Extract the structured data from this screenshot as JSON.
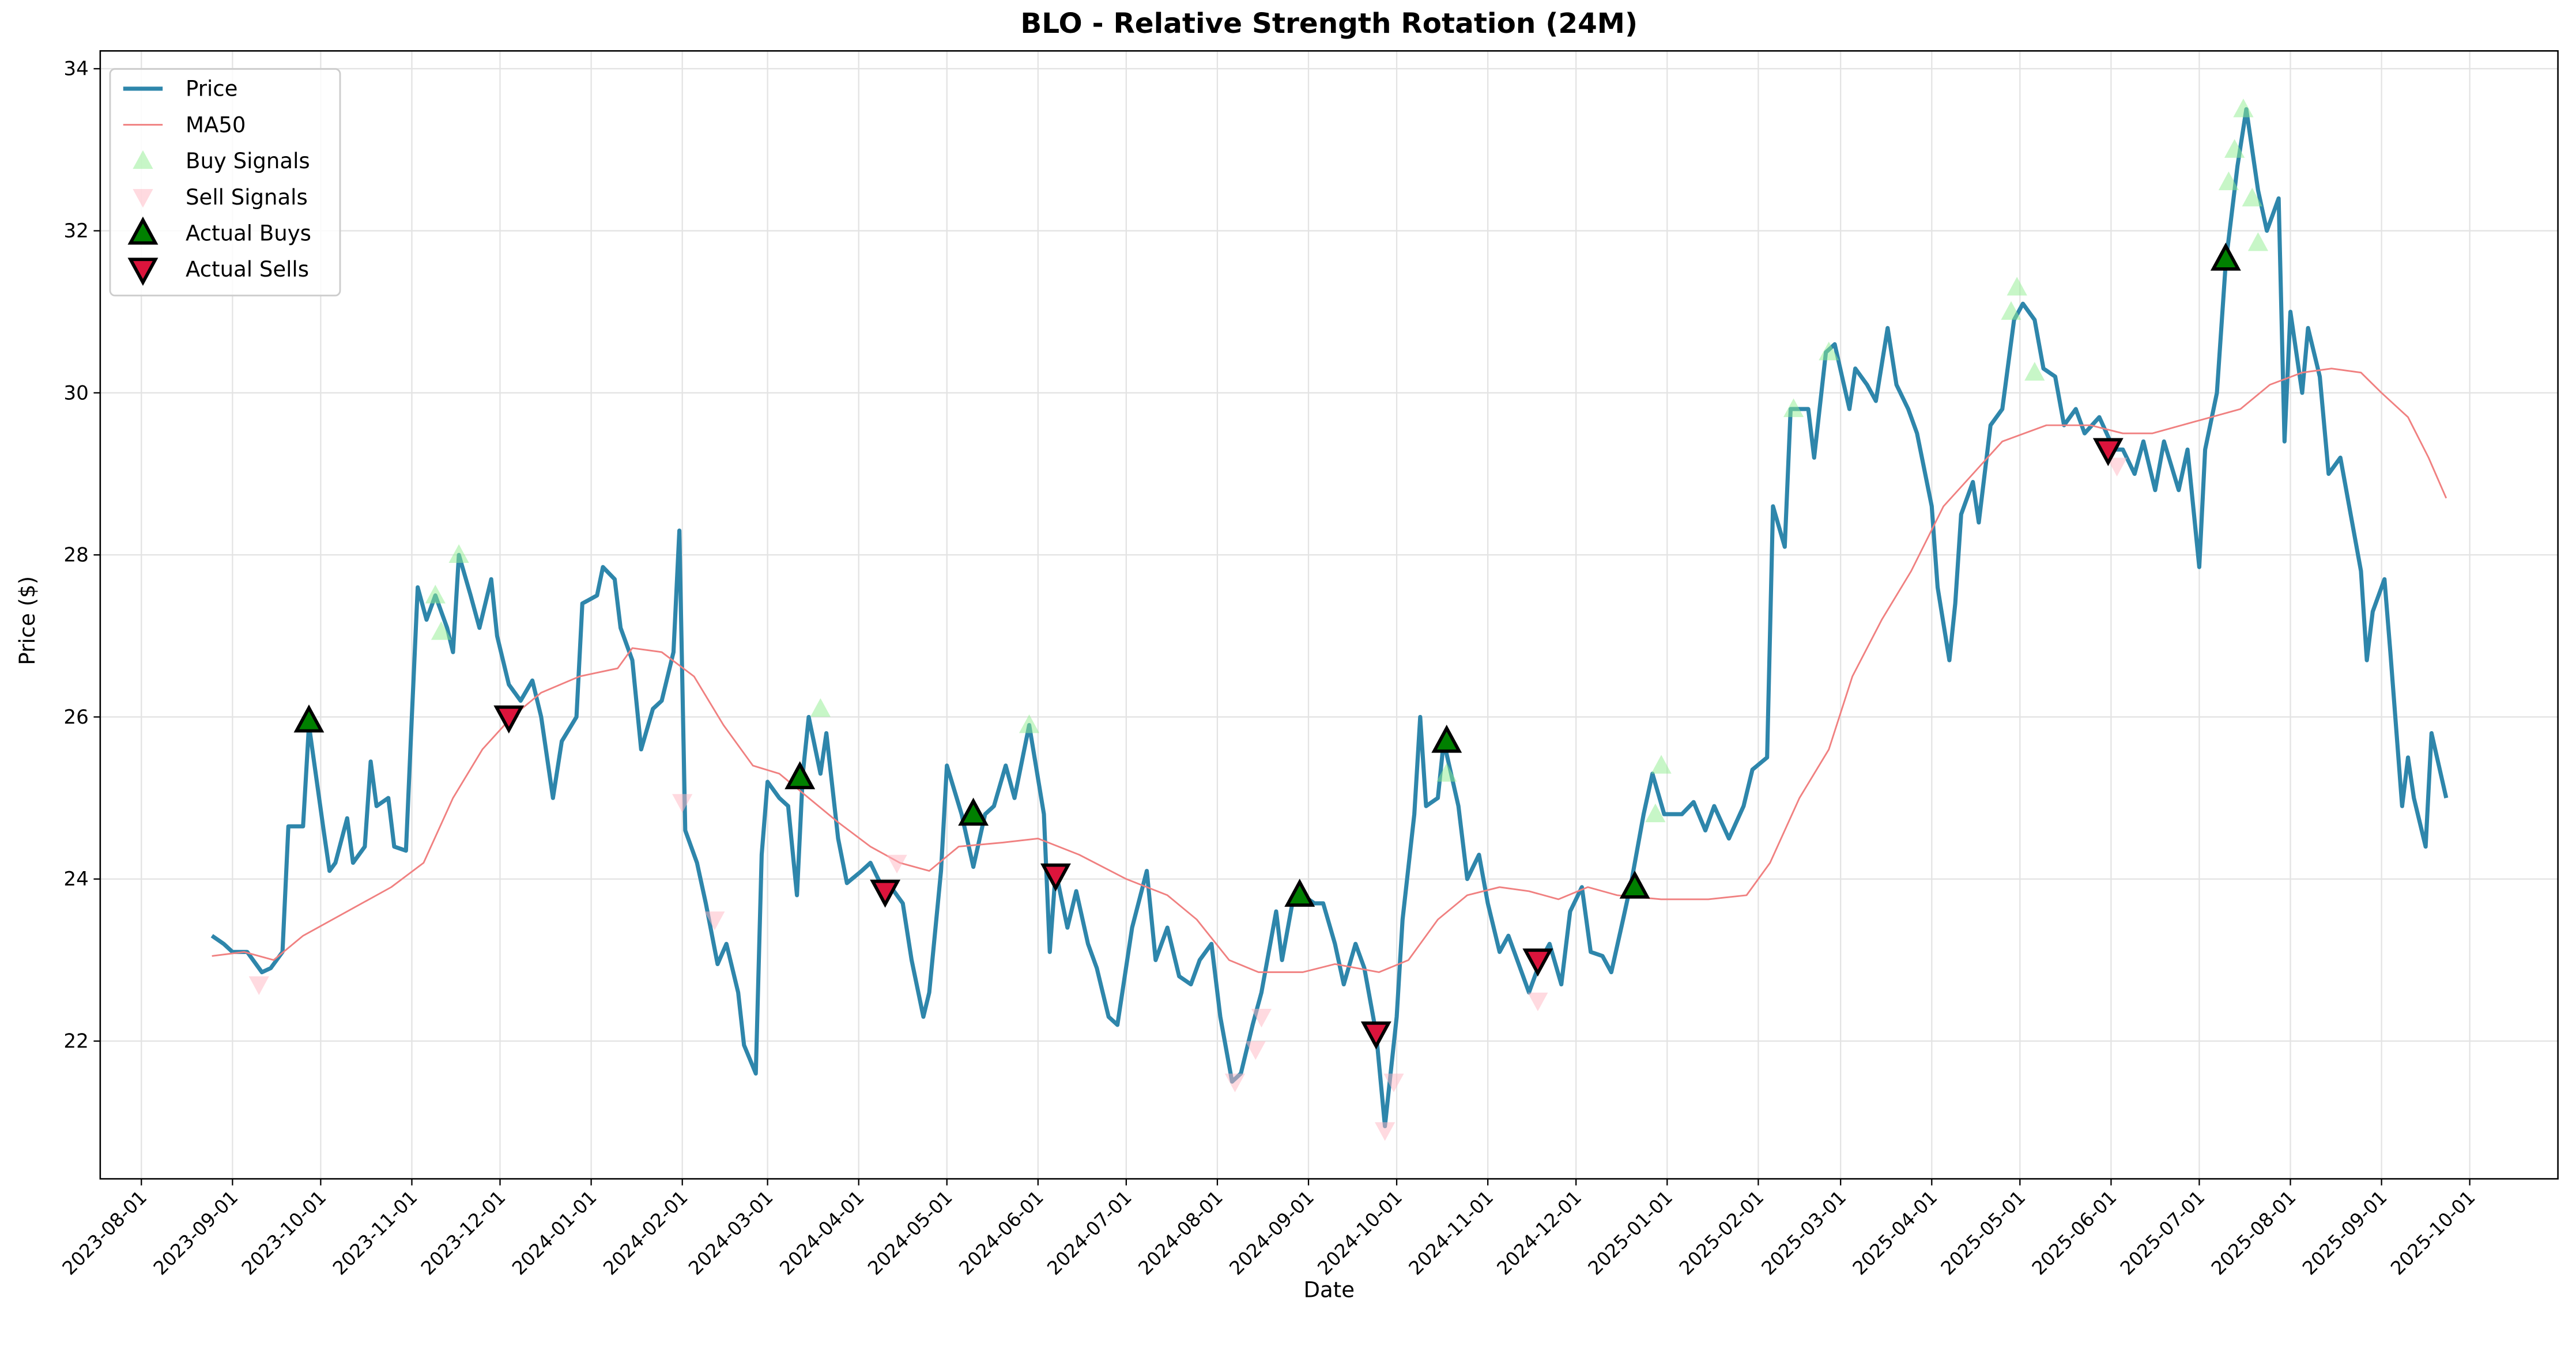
{
  "chart_data": {
    "type": "line",
    "title": "BLO - Relative Strength Rotation (24M)",
    "x_label": "Date",
    "y_label": "Price ($)",
    "xlim": [
      "2023-07-18",
      "2025-10-31"
    ],
    "ylim": [
      20.3,
      34.22
    ],
    "xticks": [
      "2023-08-01",
      "2023-09-01",
      "2023-10-01",
      "2023-11-01",
      "2023-12-01",
      "2024-01-01",
      "2024-02-01",
      "2024-03-01",
      "2024-04-01",
      "2024-05-01",
      "2024-06-01",
      "2024-07-01",
      "2024-08-01",
      "2024-09-01",
      "2024-10-01",
      "2024-11-01",
      "2024-12-01",
      "2025-01-01",
      "2025-02-01",
      "2025-03-01",
      "2025-04-01",
      "2025-05-01",
      "2025-06-01",
      "2025-07-01",
      "2025-08-01",
      "2025-09-01",
      "2025-10-01"
    ],
    "yticks": [
      22,
      24,
      26,
      28,
      30,
      32,
      34
    ],
    "grid": true,
    "legend": "upper left",
    "series": [
      {
        "name": "Price",
        "type": "line",
        "color": "#2e86ab",
        "width": 2.5,
        "x": [
          "2023-08-25",
          "2023-08-29",
          "2023-09-01",
          "2023-09-06",
          "2023-09-11",
          "2023-09-14",
          "2023-09-18",
          "2023-09-20",
          "2023-09-25",
          "2023-09-27",
          "2023-10-02",
          "2023-10-04",
          "2023-10-06",
          "2023-10-10",
          "2023-10-12",
          "2023-10-16",
          "2023-10-18",
          "2023-10-20",
          "2023-10-24",
          "2023-10-26",
          "2023-10-30",
          "2023-11-01",
          "2023-11-03",
          "2023-11-06",
          "2023-11-09",
          "2023-11-13",
          "2023-11-15",
          "2023-11-17",
          "2023-11-21",
          "2023-11-24",
          "2023-11-28",
          "2023-11-30",
          "2023-12-04",
          "2023-12-08",
          "2023-12-12",
          "2023-12-15",
          "2023-12-19",
          "2023-12-22",
          "2023-12-27",
          "2023-12-29",
          "2024-01-03",
          "2024-01-05",
          "2024-01-09",
          "2024-01-11",
          "2024-01-15",
          "2024-01-18",
          "2024-01-22",
          "2024-01-25",
          "2024-01-29",
          "2024-01-31",
          "2024-02-02",
          "2024-02-06",
          "2024-02-09",
          "2024-02-13",
          "2024-02-16",
          "2024-02-20",
          "2024-02-22",
          "2024-02-26",
          "2024-02-28",
          "2024-03-01",
          "2024-03-05",
          "2024-03-08",
          "2024-03-11",
          "2024-03-13",
          "2024-03-15",
          "2024-03-19",
          "2024-03-21",
          "2024-03-25",
          "2024-03-28",
          "2024-04-02",
          "2024-04-05",
          "2024-04-09",
          "2024-04-12",
          "2024-04-16",
          "2024-04-19",
          "2024-04-23",
          "2024-04-25",
          "2024-04-29",
          "2024-05-01",
          "2024-05-06",
          "2024-05-10",
          "2024-05-14",
          "2024-05-17",
          "2024-05-21",
          "2024-05-24",
          "2024-05-29",
          "2024-06-03",
          "2024-06-05",
          "2024-06-07",
          "2024-06-11",
          "2024-06-14",
          "2024-06-18",
          "2024-06-21",
          "2024-06-25",
          "2024-06-28",
          "2024-07-03",
          "2024-07-08",
          "2024-07-11",
          "2024-07-15",
          "2024-07-19",
          "2024-07-23",
          "2024-07-26",
          "2024-07-30",
          "2024-08-02",
          "2024-08-06",
          "2024-08-09",
          "2024-08-13",
          "2024-08-16",
          "2024-08-21",
          "2024-08-23",
          "2024-08-27",
          "2024-08-30",
          "2024-09-03",
          "2024-09-06",
          "2024-09-10",
          "2024-09-13",
          "2024-09-17",
          "2024-09-20",
          "2024-09-24",
          "2024-09-27",
          "2024-10-01",
          "2024-10-03",
          "2024-10-07",
          "2024-10-09",
          "2024-10-11",
          "2024-10-15",
          "2024-10-17",
          "2024-10-22",
          "2024-10-25",
          "2024-10-29",
          "2024-11-01",
          "2024-11-05",
          "2024-11-08",
          "2024-11-13",
          "2024-11-15",
          "2024-11-19",
          "2024-11-22",
          "2024-11-26",
          "2024-11-29",
          "2024-12-03",
          "2024-12-06",
          "2024-12-10",
          "2024-12-13",
          "2024-12-17",
          "2024-12-20",
          "2024-12-24",
          "2024-12-27",
          "2024-12-31",
          "2025-01-06",
          "2025-01-10",
          "2025-01-14",
          "2025-01-17",
          "2025-01-22",
          "2025-01-27",
          "2025-01-30",
          "2025-02-04",
          "2025-02-06",
          "2025-02-10",
          "2025-02-12",
          "2025-02-18",
          "2025-02-20",
          "2025-02-24",
          "2025-02-27",
          "2025-03-04",
          "2025-03-06",
          "2025-03-10",
          "2025-03-13",
          "2025-03-17",
          "2025-03-20",
          "2025-03-24",
          "2025-03-27",
          "2025-04-01",
          "2025-04-03",
          "2025-04-07",
          "2025-04-09",
          "2025-04-11",
          "2025-04-15",
          "2025-04-17",
          "2025-04-21",
          "2025-04-25",
          "2025-04-29",
          "2025-05-02",
          "2025-05-06",
          "2025-05-09",
          "2025-05-13",
          "2025-05-16",
          "2025-05-20",
          "2025-05-23",
          "2025-05-28",
          "2025-06-02",
          "2025-06-05",
          "2025-06-09",
          "2025-06-12",
          "2025-06-16",
          "2025-06-19",
          "2025-06-24",
          "2025-06-27",
          "2025-07-01",
          "2025-07-03",
          "2025-07-07",
          "2025-07-10",
          "2025-07-14",
          "2025-07-17",
          "2025-07-21",
          "2025-07-24",
          "2025-07-28",
          "2025-07-30",
          "2025-08-01",
          "2025-08-05",
          "2025-08-07",
          "2025-08-11",
          "2025-08-14",
          "2025-08-18",
          "2025-08-21",
          "2025-08-25",
          "2025-08-27",
          "2025-08-29",
          "2025-09-02",
          "2025-09-04",
          "2025-09-08",
          "2025-09-10",
          "2025-09-12",
          "2025-09-16",
          "2025-09-18",
          "2025-09-23"
        ],
        "values": [
          23.3,
          23.2,
          23.1,
          23.1,
          22.85,
          22.9,
          23.1,
          24.65,
          24.65,
          25.9,
          24.6,
          24.1,
          24.2,
          24.75,
          24.2,
          24.4,
          25.45,
          24.9,
          25.0,
          24.4,
          24.35,
          26.0,
          27.6,
          27.2,
          27.5,
          27.1,
          26.8,
          28.0,
          27.5,
          27.1,
          27.7,
          27.0,
          26.4,
          26.2,
          26.45,
          26.0,
          25.0,
          25.7,
          26.0,
          27.4,
          27.5,
          27.85,
          27.7,
          27.1,
          26.7,
          25.6,
          26.1,
          26.2,
          26.8,
          28.3,
          24.6,
          24.2,
          23.7,
          22.95,
          23.2,
          22.6,
          21.95,
          21.6,
          24.3,
          25.2,
          25.0,
          24.9,
          23.8,
          25.3,
          26.0,
          25.3,
          25.8,
          24.5,
          23.95,
          24.1,
          24.2,
          23.9,
          23.9,
          23.7,
          23.0,
          22.3,
          22.6,
          24.1,
          25.4,
          24.8,
          24.15,
          24.8,
          24.9,
          25.4,
          25.0,
          25.9,
          24.8,
          23.1,
          24.1,
          23.4,
          23.85,
          23.2,
          22.9,
          22.3,
          22.2,
          23.4,
          24.1,
          23.0,
          23.4,
          22.8,
          22.7,
          23.0,
          23.2,
          22.3,
          21.5,
          21.6,
          22.2,
          22.6,
          23.6,
          23.0,
          23.8,
          23.8,
          23.7,
          23.7,
          23.2,
          22.7,
          23.2,
          22.9,
          22.1,
          20.95,
          22.3,
          23.5,
          24.8,
          26.0,
          24.9,
          25.0,
          25.7,
          24.9,
          24.0,
          24.3,
          23.7,
          23.1,
          23.3,
          22.8,
          22.6,
          23.0,
          23.2,
          22.7,
          23.6,
          23.9,
          23.1,
          23.05,
          22.85,
          23.5,
          24.0,
          24.8,
          25.3,
          24.8,
          24.8,
          24.95,
          24.6,
          24.9,
          24.5,
          24.9,
          25.35,
          25.5,
          28.6,
          28.1,
          29.8,
          29.8,
          29.2,
          30.5,
          30.6,
          29.8,
          30.3,
          30.1,
          29.9,
          30.8,
          30.1,
          29.8,
          29.5,
          28.6,
          27.6,
          26.7,
          27.4,
          28.5,
          28.9,
          28.4,
          29.6,
          29.8,
          30.9,
          31.1,
          30.9,
          30.3,
          30.2,
          29.6,
          29.8,
          29.5,
          29.7,
          29.3,
          29.3,
          29.0,
          29.4,
          28.8,
          29.4,
          28.8,
          29.3,
          27.85,
          29.3,
          30.0,
          31.6,
          32.8,
          33.5,
          32.5,
          32.0,
          32.4,
          29.4,
          31.0,
          30.0,
          30.8,
          30.2,
          29.0,
          29.2,
          28.6,
          27.8,
          26.7,
          27.3,
          27.7,
          26.8,
          24.9,
          25.5,
          25.0,
          24.4,
          25.8,
          25.0
        ]
      },
      {
        "name": "MA50",
        "type": "line",
        "color": "#f08080",
        "width": 1,
        "x": [
          "2023-08-25",
          "2023-09-05",
          "2023-09-15",
          "2023-09-25",
          "2023-10-10",
          "2023-10-25",
          "2023-11-05",
          "2023-11-15",
          "2023-11-25",
          "2023-12-05",
          "2023-12-15",
          "2023-12-28",
          "2024-01-10",
          "2024-01-15",
          "2024-01-25",
          "2024-02-05",
          "2024-02-15",
          "2024-02-25",
          "2024-03-05",
          "2024-03-15",
          "2024-03-25",
          "2024-04-05",
          "2024-04-15",
          "2024-04-25",
          "2024-05-05",
          "2024-05-20",
          "2024-06-01",
          "2024-06-15",
          "2024-07-01",
          "2024-07-15",
          "2024-07-25",
          "2024-08-05",
          "2024-08-15",
          "2024-08-30",
          "2024-09-10",
          "2024-09-25",
          "2024-10-05",
          "2024-10-15",
          "2024-10-25",
          "2024-11-05",
          "2024-11-15",
          "2024-11-25",
          "2024-12-05",
          "2024-12-15",
          "2024-12-30",
          "2025-01-15",
          "2025-01-28",
          "2025-02-05",
          "2025-02-15",
          "2025-02-25",
          "2025-03-05",
          "2025-03-15",
          "2025-03-25",
          "2025-04-05",
          "2025-04-15",
          "2025-04-25",
          "2025-05-10",
          "2025-05-25",
          "2025-06-05",
          "2025-06-15",
          "2025-06-25",
          "2025-07-05",
          "2025-07-15",
          "2025-07-25",
          "2025-08-05",
          "2025-08-15",
          "2025-08-25",
          "2025-09-01",
          "2025-09-10",
          "2025-09-17",
          "2025-09-23"
        ],
        "values": [
          23.05,
          23.1,
          23.0,
          23.3,
          23.6,
          23.9,
          24.2,
          25.0,
          25.6,
          26.0,
          26.3,
          26.5,
          26.6,
          26.85,
          26.8,
          26.5,
          25.9,
          25.4,
          25.3,
          25.0,
          24.7,
          24.4,
          24.2,
          24.1,
          24.4,
          24.45,
          24.5,
          24.3,
          24.0,
          23.8,
          23.5,
          23.0,
          22.85,
          22.85,
          22.95,
          22.85,
          23.0,
          23.5,
          23.8,
          23.9,
          23.85,
          23.75,
          23.9,
          23.8,
          23.75,
          23.75,
          23.8,
          24.2,
          25.0,
          25.6,
          26.5,
          27.2,
          27.8,
          28.6,
          29.0,
          29.4,
          29.6,
          29.6,
          29.5,
          29.5,
          29.6,
          29.7,
          29.8,
          30.1,
          30.25,
          30.3,
          30.25,
          30.0,
          29.7,
          29.2,
          28.7
        ]
      },
      {
        "name": "Buy Signals",
        "type": "scatter",
        "marker": "triangle-up",
        "color": "#90ee90",
        "opacity": 0.5,
        "x": [
          "2023-11-09",
          "2023-11-11",
          "2023-11-17",
          "2024-03-19",
          "2024-05-29",
          "2024-10-18",
          "2024-12-28",
          "2024-12-30",
          "2025-02-13",
          "2025-02-25",
          "2025-04-28",
          "2025-04-30",
          "2025-05-06",
          "2025-07-11",
          "2025-07-13",
          "2025-07-16",
          "2025-07-19",
          "2025-07-21"
        ],
        "values": [
          27.5,
          27.05,
          28.0,
          26.1,
          25.9,
          25.3,
          24.8,
          25.4,
          29.8,
          30.5,
          31.0,
          31.3,
          30.25,
          32.6,
          33.0,
          33.5,
          32.4,
          31.85
        ]
      },
      {
        "name": "Sell Signals",
        "type": "scatter",
        "marker": "triangle-down",
        "color": "#ffb6c1",
        "opacity": 0.5,
        "x": [
          "2023-09-10",
          "2024-02-01",
          "2024-02-12",
          "2024-04-14",
          "2024-08-07",
          "2024-08-14",
          "2024-08-16",
          "2024-09-27",
          "2024-09-30",
          "2024-11-18",
          "2025-06-03"
        ],
        "values": [
          22.7,
          24.95,
          23.5,
          24.2,
          21.5,
          21.9,
          22.3,
          20.9,
          21.5,
          22.5,
          29.1
        ]
      },
      {
        "name": "Actual Buys",
        "type": "scatter",
        "marker": "triangle-up",
        "color": "#008000",
        "edge": "#000000",
        "x": [
          "2023-09-27",
          "2024-03-12",
          "2024-05-10",
          "2024-08-29",
          "2024-10-18",
          "2024-12-21",
          "2025-07-10"
        ],
        "values": [
          25.95,
          25.25,
          24.8,
          23.8,
          25.7,
          23.9,
          31.65
        ]
      },
      {
        "name": "Actual Sells",
        "type": "scatter",
        "marker": "triangle-down",
        "color": "#dc143c",
        "edge": "#000000",
        "x": [
          "2023-12-04",
          "2024-04-10",
          "2024-06-07",
          "2024-09-24",
          "2024-11-18",
          "2025-05-31"
        ],
        "values": [
          26.0,
          23.85,
          24.05,
          22.1,
          23.0,
          29.3
        ]
      }
    ]
  }
}
